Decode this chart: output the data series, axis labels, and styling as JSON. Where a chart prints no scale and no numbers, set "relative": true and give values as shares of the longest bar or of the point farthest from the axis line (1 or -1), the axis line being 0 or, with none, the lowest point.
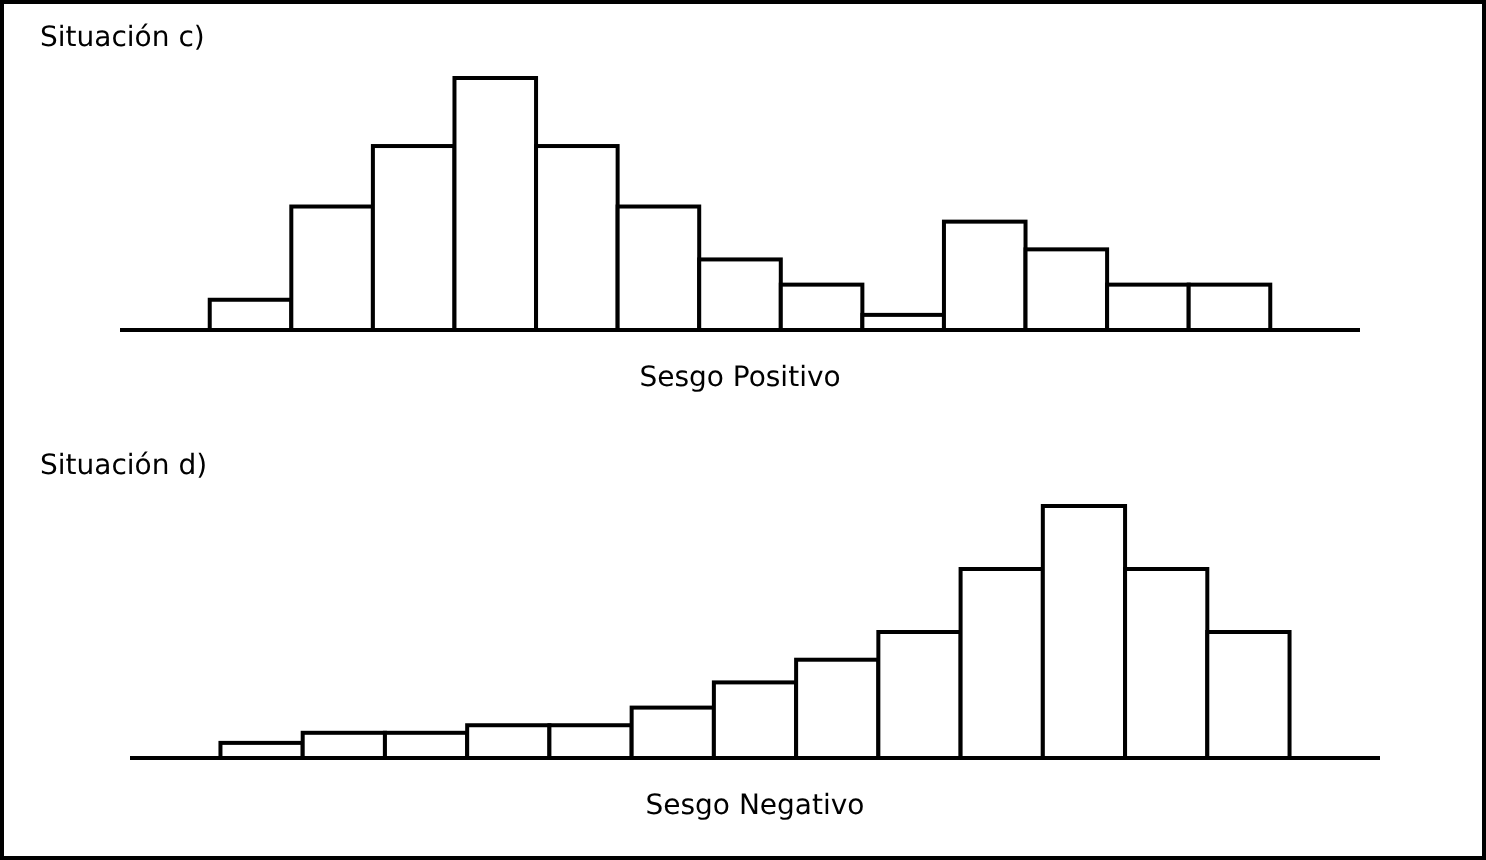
{
  "chart_data": [
    {
      "type": "bar",
      "title": "Situación c)",
      "xlabel": "Sesgo Positivo",
      "relative": true,
      "categories": [
        null,
        null,
        null,
        null,
        null,
        null,
        null,
        null,
        null,
        null,
        null,
        null,
        null
      ],
      "color": "#ffffff",
      "values": [
        0.12,
        0.49,
        0.73,
        1,
        0.73,
        0.49,
        0.28,
        0.18,
        0.06,
        0.43,
        0.32,
        0.18,
        0.18
      ]
    },
    {
      "type": "bar",
      "title": "Situación d)",
      "xlabel": "Sesgo Negativo",
      "relative": true,
      "categories": [
        null,
        null,
        null,
        null,
        null,
        null,
        null,
        null,
        null,
        null,
        null,
        null,
        null
      ],
      "color": "#ffffff",
      "values": [
        0.06,
        0.1,
        0.1,
        0.13,
        0.13,
        0.2,
        0.3,
        0.39,
        0.5,
        0.75,
        1,
        0.75,
        0.5
      ]
    }
  ]
}
